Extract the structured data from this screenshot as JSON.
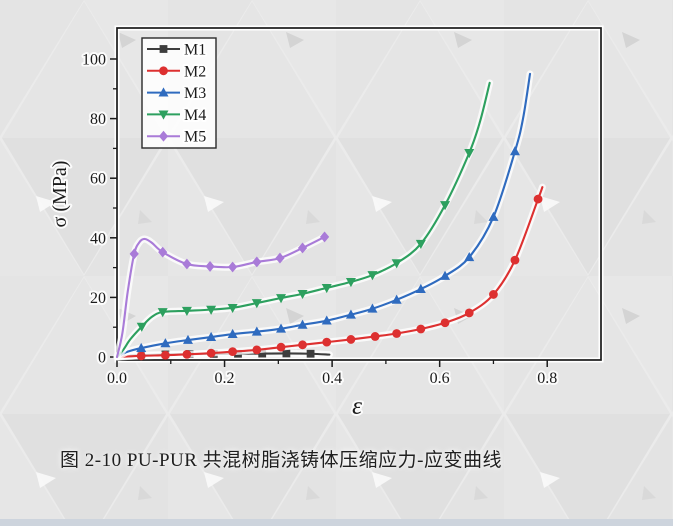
{
  "figure": {
    "caption": "图 2-10 PU-PUR 共混树脂浇铸体压缩应力-应变曲线"
  },
  "chart_data": {
    "type": "line",
    "title": "",
    "xlabel": "ε",
    "ylabel": "σ (MPa)",
    "xlim": [
      0,
      0.9
    ],
    "ylim": [
      -1,
      110.4
    ],
    "grid": false,
    "legend_position": "top-left",
    "frame_color": "#1a1a1a",
    "x_ticks_major": [
      {
        "v": 0.0,
        "label": "0.0"
      },
      {
        "v": 0.2,
        "label": "0.2"
      },
      {
        "v": 0.4,
        "label": "0.4"
      },
      {
        "v": 0.6,
        "label": "0.6"
      },
      {
        "v": 0.8,
        "label": "0.8"
      }
    ],
    "x_ticks_minor": [
      0.1,
      0.3,
      0.5,
      0.7
    ],
    "y_ticks_major": [
      {
        "v": 0,
        "label": "0"
      },
      {
        "v": 20,
        "label": "20"
      },
      {
        "v": 40,
        "label": "40"
      },
      {
        "v": 60,
        "label": "60"
      },
      {
        "v": 80,
        "label": "80"
      },
      {
        "v": 100,
        "label": "100"
      }
    ],
    "y_ticks_minor": [
      10,
      30,
      50,
      70,
      90
    ],
    "series": [
      {
        "name": "M1",
        "color": "#3d3d3d",
        "marker": "square",
        "line": [
          [
            0,
            0
          ],
          [
            0.02,
            0.4
          ],
          [
            0.045,
            0.6
          ],
          [
            0.09,
            0.85
          ],
          [
            0.135,
            1.0
          ],
          [
            0.18,
            1.05
          ],
          [
            0.225,
            1.1
          ],
          [
            0.27,
            1.15
          ],
          [
            0.315,
            1.2
          ],
          [
            0.36,
            1.1
          ],
          [
            0.395,
            0.8
          ]
        ],
        "markers": [
          [
            0.045,
            0.6
          ],
          [
            0.09,
            0.85
          ],
          [
            0.135,
            1.0
          ],
          [
            0.18,
            1.05
          ],
          [
            0.225,
            1.1
          ],
          [
            0.27,
            1.15
          ],
          [
            0.315,
            1.2
          ],
          [
            0.36,
            1.1
          ]
        ]
      },
      {
        "name": "M2",
        "color": "#dd3030",
        "marker": "circle",
        "line": [
          [
            0,
            0
          ],
          [
            0.045,
            0.4
          ],
          [
            0.09,
            0.6
          ],
          [
            0.13,
            0.9
          ],
          [
            0.175,
            1.3
          ],
          [
            0.215,
            1.8
          ],
          [
            0.26,
            2.4
          ],
          [
            0.305,
            3.3
          ],
          [
            0.345,
            4.1
          ],
          [
            0.39,
            5.0
          ],
          [
            0.435,
            5.9
          ],
          [
            0.48,
            6.9
          ],
          [
            0.52,
            7.9
          ],
          [
            0.565,
            9.4
          ],
          [
            0.61,
            11.5
          ],
          [
            0.655,
            14.8
          ],
          [
            0.7,
            21.0
          ],
          [
            0.74,
            32.5
          ],
          [
            0.783,
            53.0
          ],
          [
            0.791,
            57.0
          ]
        ],
        "markers": [
          [
            0.045,
            0.4
          ],
          [
            0.09,
            0.6
          ],
          [
            0.13,
            0.9
          ],
          [
            0.175,
            1.3
          ],
          [
            0.215,
            1.8
          ],
          [
            0.26,
            2.4
          ],
          [
            0.305,
            3.3
          ],
          [
            0.345,
            4.1
          ],
          [
            0.39,
            5.0
          ],
          [
            0.435,
            5.9
          ],
          [
            0.48,
            6.9
          ],
          [
            0.52,
            7.9
          ],
          [
            0.565,
            9.4
          ],
          [
            0.61,
            11.5
          ],
          [
            0.655,
            14.8
          ],
          [
            0.7,
            21.0
          ],
          [
            0.74,
            32.5
          ],
          [
            0.783,
            53.0
          ]
        ]
      },
      {
        "name": "M3",
        "color": "#2f6bbf",
        "marker": "triangle-up",
        "line": [
          [
            0,
            0
          ],
          [
            0.02,
            1.8
          ],
          [
            0.045,
            3.0
          ],
          [
            0.09,
            4.6
          ],
          [
            0.132,
            5.7
          ],
          [
            0.175,
            6.7
          ],
          [
            0.215,
            7.7
          ],
          [
            0.26,
            8.5
          ],
          [
            0.305,
            9.5
          ],
          [
            0.345,
            10.8
          ],
          [
            0.39,
            12.2
          ],
          [
            0.435,
            14.2
          ],
          [
            0.475,
            16.2
          ],
          [
            0.52,
            19.2
          ],
          [
            0.565,
            22.8
          ],
          [
            0.61,
            27.2
          ],
          [
            0.655,
            33.5
          ],
          [
            0.7,
            47.0
          ],
          [
            0.74,
            69.0
          ],
          [
            0.755,
            80.0
          ],
          [
            0.768,
            95.0
          ]
        ],
        "markers": [
          [
            0.045,
            3.0
          ],
          [
            0.09,
            4.6
          ],
          [
            0.132,
            5.7
          ],
          [
            0.175,
            6.7
          ],
          [
            0.215,
            7.7
          ],
          [
            0.26,
            8.5
          ],
          [
            0.305,
            9.5
          ],
          [
            0.345,
            10.8
          ],
          [
            0.39,
            12.2
          ],
          [
            0.435,
            14.2
          ],
          [
            0.475,
            16.2
          ],
          [
            0.52,
            19.2
          ],
          [
            0.565,
            22.8
          ],
          [
            0.61,
            27.2
          ],
          [
            0.655,
            33.5
          ],
          [
            0.7,
            47.0
          ],
          [
            0.74,
            69.0
          ]
        ]
      },
      {
        "name": "M4",
        "color": "#2da05f",
        "marker": "triangle-down",
        "line": [
          [
            0,
            0
          ],
          [
            0.012,
            2.5
          ],
          [
            0.025,
            6.0
          ],
          [
            0.046,
            10.2
          ],
          [
            0.065,
            13.5
          ],
          [
            0.085,
            15.1
          ],
          [
            0.13,
            15.5
          ],
          [
            0.175,
            15.9
          ],
          [
            0.215,
            16.5
          ],
          [
            0.26,
            18.1
          ],
          [
            0.305,
            19.8
          ],
          [
            0.345,
            21.2
          ],
          [
            0.39,
            23.2
          ],
          [
            0.435,
            25.2
          ],
          [
            0.475,
            27.5
          ],
          [
            0.52,
            31.5
          ],
          [
            0.565,
            38.0
          ],
          [
            0.61,
            51.0
          ],
          [
            0.655,
            68.5
          ],
          [
            0.675,
            79.0
          ],
          [
            0.693,
            92.0
          ]
        ],
        "markers": [
          [
            0.046,
            10.2
          ],
          [
            0.085,
            15.1
          ],
          [
            0.13,
            15.5
          ],
          [
            0.175,
            15.9
          ],
          [
            0.215,
            16.5
          ],
          [
            0.26,
            18.1
          ],
          [
            0.305,
            19.8
          ],
          [
            0.345,
            21.2
          ],
          [
            0.39,
            23.2
          ],
          [
            0.435,
            25.2
          ],
          [
            0.475,
            27.5
          ],
          [
            0.52,
            31.5
          ],
          [
            0.565,
            38.0
          ],
          [
            0.61,
            51.0
          ],
          [
            0.655,
            68.5
          ]
        ]
      },
      {
        "name": "M5",
        "color": "#a97bd8",
        "marker": "diamond",
        "line": [
          [
            0,
            0
          ],
          [
            0.01,
            8.0
          ],
          [
            0.02,
            22.0
          ],
          [
            0.032,
            34.6
          ],
          [
            0.042,
            38.6
          ],
          [
            0.052,
            39.6
          ],
          [
            0.065,
            38.3
          ],
          [
            0.085,
            35.2
          ],
          [
            0.13,
            31.2
          ],
          [
            0.173,
            30.4
          ],
          [
            0.215,
            30.2
          ],
          [
            0.26,
            31.9
          ],
          [
            0.303,
            33.2
          ],
          [
            0.345,
            36.6
          ],
          [
            0.386,
            40.3
          ]
        ],
        "markers": [
          [
            0.032,
            34.6
          ],
          [
            0.085,
            35.2
          ],
          [
            0.13,
            31.2
          ],
          [
            0.173,
            30.4
          ],
          [
            0.215,
            30.2
          ],
          [
            0.26,
            31.9
          ],
          [
            0.303,
            33.2
          ],
          [
            0.345,
            36.6
          ],
          [
            0.386,
            40.3
          ]
        ]
      }
    ]
  }
}
